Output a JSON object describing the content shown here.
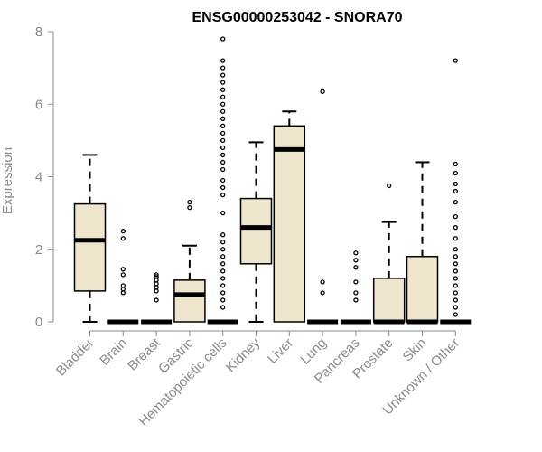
{
  "chart_data": {
    "type": "boxplot",
    "title": "ENSG00000253042 - SNORA70",
    "xlabel": "",
    "ylabel": "Expression",
    "ylim": [
      0,
      8
    ],
    "yticks": [
      0,
      2,
      4,
      6,
      8
    ],
    "box_color": "#ede6cc",
    "categories": [
      "Bladder",
      "Brain",
      "Breast",
      "Gastric",
      "Hematopoietic cells",
      "Kidney",
      "Liver",
      "Lung",
      "Pancreas",
      "Prostate",
      "Skin",
      "Unknown / Other"
    ],
    "boxes": [
      {
        "q1": 0.85,
        "median": 2.25,
        "q3": 3.25,
        "whisker_low": 0,
        "whisker_high": 4.6,
        "outliers": []
      },
      {
        "q1": 0,
        "median": 0,
        "q3": 0,
        "whisker_low": 0,
        "whisker_high": 0,
        "outliers": [
          0.8,
          0.9,
          1.0,
          1.3,
          1.45,
          2.3,
          2.5
        ]
      },
      {
        "q1": 0,
        "median": 0,
        "q3": 0,
        "whisker_low": 0,
        "whisker_high": 0,
        "outliers": [
          0.6,
          0.85,
          0.95,
          1.05,
          1.15,
          1.25,
          1.3
        ]
      },
      {
        "q1": 0,
        "median": 0.75,
        "q3": 1.15,
        "whisker_low": 0,
        "whisker_high": 2.1,
        "outliers": [
          3.15,
          3.3
        ]
      },
      {
        "q1": 0,
        "median": 0,
        "q3": 0,
        "whisker_low": 0,
        "whisker_high": 0,
        "outliers": [
          0.4,
          0.6,
          0.8,
          1.0,
          1.2,
          1.4,
          1.6,
          1.8,
          2.0,
          2.2,
          2.4,
          3.0,
          3.5,
          3.7,
          3.9,
          4.2,
          4.4,
          4.6,
          4.8,
          5.0,
          5.2,
          5.4,
          5.6,
          5.8,
          6.0,
          6.2,
          6.4,
          6.6,
          6.8,
          7.0,
          7.2,
          7.8
        ]
      },
      {
        "q1": 1.6,
        "median": 2.6,
        "q3": 3.4,
        "whisker_low": 0,
        "whisker_high": 4.95,
        "outliers": []
      },
      {
        "q1": 0,
        "median": 4.75,
        "q3": 5.4,
        "whisker_low": 0,
        "whisker_high": 5.8,
        "outliers": []
      },
      {
        "q1": 0,
        "median": 0,
        "q3": 0,
        "whisker_low": 0,
        "whisker_high": 0,
        "outliers": [
          0.8,
          1.1,
          6.35
        ]
      },
      {
        "q1": 0,
        "median": 0,
        "q3": 0,
        "whisker_low": 0,
        "whisker_high": 0,
        "outliers": [
          0.6,
          0.8,
          1.1,
          1.5,
          1.7,
          1.9
        ]
      },
      {
        "q1": 0,
        "median": 0,
        "q3": 1.2,
        "whisker_low": 0,
        "whisker_high": 2.75,
        "outliers": [
          3.75
        ]
      },
      {
        "q1": 0,
        "median": 0,
        "q3": 1.8,
        "whisker_low": 0,
        "whisker_high": 4.4,
        "outliers": []
      },
      {
        "q1": 0,
        "median": 0,
        "q3": 0,
        "whisker_low": 0,
        "whisker_high": 0,
        "outliers": [
          0.2,
          0.4,
          0.6,
          0.8,
          1.0,
          1.2,
          1.4,
          1.6,
          1.8,
          2.0,
          2.3,
          2.6,
          2.9,
          3.3,
          3.6,
          3.8,
          4.1,
          4.35,
          7.2
        ]
      }
    ]
  }
}
